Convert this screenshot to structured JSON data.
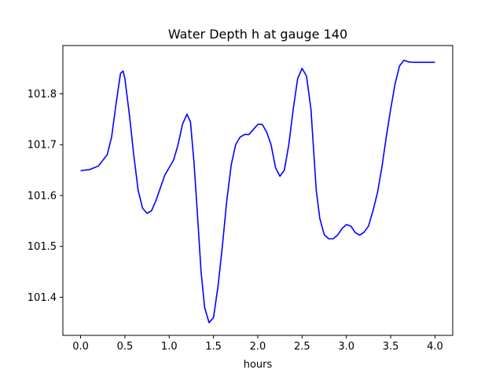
{
  "chart_data": {
    "type": "line",
    "title": "Water Depth h at gauge 140",
    "xlabel": "hours",
    "ylabel": "",
    "xlim": [
      -0.2,
      4.2
    ],
    "ylim": [
      101.325,
      101.895
    ],
    "xticks": [
      0.0,
      0.5,
      1.0,
      1.5,
      2.0,
      2.5,
      3.0,
      3.5,
      4.0
    ],
    "xtick_labels": [
      "0.0",
      "0.5",
      "1.0",
      "1.5",
      "2.0",
      "2.5",
      "3.0",
      "3.5",
      "4.0"
    ],
    "yticks": [
      101.4,
      101.5,
      101.6,
      101.7,
      101.8
    ],
    "ytick_labels": [
      "101.4",
      "101.5",
      "101.6",
      "101.7",
      "101.8"
    ],
    "grid": false,
    "series": [
      {
        "color": "#0000ff",
        "x": [
          0.0,
          0.1,
          0.2,
          0.3,
          0.35,
          0.4,
          0.45,
          0.48,
          0.5,
          0.55,
          0.6,
          0.65,
          0.7,
          0.75,
          0.8,
          0.85,
          0.9,
          0.95,
          1.0,
          1.05,
          1.1,
          1.15,
          1.2,
          1.24,
          1.28,
          1.32,
          1.36,
          1.4,
          1.45,
          1.5,
          1.55,
          1.6,
          1.65,
          1.7,
          1.75,
          1.8,
          1.85,
          1.9,
          1.95,
          2.0,
          2.05,
          2.1,
          2.15,
          2.2,
          2.25,
          2.3,
          2.35,
          2.4,
          2.45,
          2.5,
          2.55,
          2.6,
          2.63,
          2.66,
          2.7,
          2.75,
          2.8,
          2.85,
          2.9,
          2.95,
          3.0,
          3.05,
          3.1,
          3.15,
          3.2,
          3.25,
          3.3,
          3.35,
          3.4,
          3.45,
          3.5,
          3.55,
          3.6,
          3.65,
          3.7,
          3.75,
          3.8,
          3.85,
          3.9,
          3.95,
          4.0
        ],
        "y": [
          101.649,
          101.651,
          101.658,
          101.68,
          101.715,
          101.78,
          101.84,
          101.845,
          101.83,
          101.76,
          101.68,
          101.61,
          101.575,
          101.565,
          101.57,
          101.59,
          101.615,
          101.64,
          101.655,
          101.67,
          101.7,
          101.74,
          101.76,
          101.745,
          101.665,
          101.56,
          101.45,
          101.38,
          101.35,
          101.36,
          101.42,
          101.5,
          101.59,
          101.66,
          101.7,
          101.715,
          101.72,
          101.72,
          101.73,
          101.74,
          101.74,
          101.725,
          101.7,
          101.655,
          101.638,
          101.65,
          101.7,
          101.77,
          101.83,
          101.85,
          101.835,
          101.77,
          101.69,
          101.61,
          101.555,
          101.523,
          101.515,
          101.515,
          101.522,
          101.535,
          101.543,
          101.54,
          101.527,
          101.522,
          101.528,
          101.54,
          101.57,
          101.605,
          101.655,
          101.715,
          101.77,
          101.82,
          101.855,
          101.866,
          101.863,
          101.862,
          101.862,
          101.862,
          101.862,
          101.862,
          101.862
        ]
      }
    ]
  }
}
